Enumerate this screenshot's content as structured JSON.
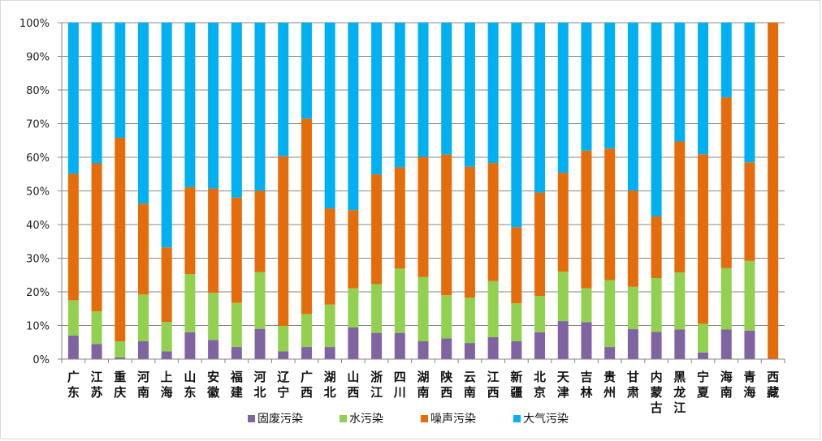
{
  "chart_data": {
    "type": "bar",
    "stacked": true,
    "percent_stacked": true,
    "title": "",
    "xlabel": "",
    "ylabel": "",
    "ylim": [
      0,
      100
    ],
    "y_ticks": [
      "0%",
      "10%",
      "20%",
      "30%",
      "40%",
      "50%",
      "60%",
      "70%",
      "80%",
      "90%",
      "100%"
    ],
    "grid": true,
    "legend_position": "bottom",
    "categories": [
      "广东",
      "江苏",
      "重庆",
      "河南",
      "上海",
      "山东",
      "安徽",
      "福建",
      "河北",
      "辽宁",
      "广西",
      "湖北",
      "山西",
      "浙江",
      "四川",
      "湖南",
      "陕西",
      "云南",
      "江西",
      "新疆",
      "北京",
      "天津",
      "吉林",
      "贵州",
      "甘肃",
      "内蒙古",
      "黑龙江",
      "宁夏",
      "海南",
      "青海",
      "西藏"
    ],
    "series": [
      {
        "name": "固废污染",
        "color": "#8064a2",
        "values": [
          7,
          4.5,
          0.5,
          5.3,
          2.3,
          8,
          5.7,
          3.6,
          9,
          2.3,
          3.6,
          3.6,
          9.4,
          7.8,
          7.8,
          5.3,
          6.2,
          4.8,
          6.5,
          5.3,
          8,
          11.3,
          11,
          3.6,
          8.9,
          8.1,
          8.8,
          2,
          8.8,
          8.5,
          0
        ]
      },
      {
        "name": "水污染",
        "color": "#92d050",
        "values": [
          10.5,
          9.7,
          4.8,
          13.9,
          8.7,
          17.3,
          14,
          13.1,
          16.9,
          7.6,
          9.8,
          12.6,
          11.7,
          14.5,
          19.1,
          19.1,
          12.8,
          13.5,
          16.7,
          11.3,
          10.8,
          14.7,
          10.1,
          19.9,
          12.6,
          16,
          17,
          8.5,
          18.3,
          20.7,
          0
        ]
      },
      {
        "name": "噪声污染",
        "color": "#e46c0a",
        "values": [
          37.6,
          44,
          60.5,
          27,
          22.2,
          25.8,
          31,
          31.3,
          24.2,
          50.4,
          58.1,
          28.6,
          23.2,
          32.6,
          30.1,
          35.7,
          41.8,
          38.9,
          35.1,
          22.6,
          30.7,
          29.4,
          40.9,
          39.1,
          28.6,
          18.3,
          38.9,
          50.4,
          50.7,
          29.3,
          100
        ]
      },
      {
        "name": "大气污染",
        "color": "#00b0f0",
        "values": [
          44.9,
          41.8,
          34.2,
          53.8,
          66.8,
          48.9,
          49.3,
          52,
          49.9,
          39.7,
          28.5,
          55.2,
          55.7,
          45.1,
          43,
          39.9,
          39.2,
          42.8,
          41.7,
          60.8,
          50.5,
          44.6,
          38,
          37.4,
          49.9,
          57.6,
          35.3,
          39.1,
          22.2,
          41.5,
          0
        ]
      }
    ]
  },
  "colors": {
    "axis": "#868686",
    "grid": "#868686"
  }
}
